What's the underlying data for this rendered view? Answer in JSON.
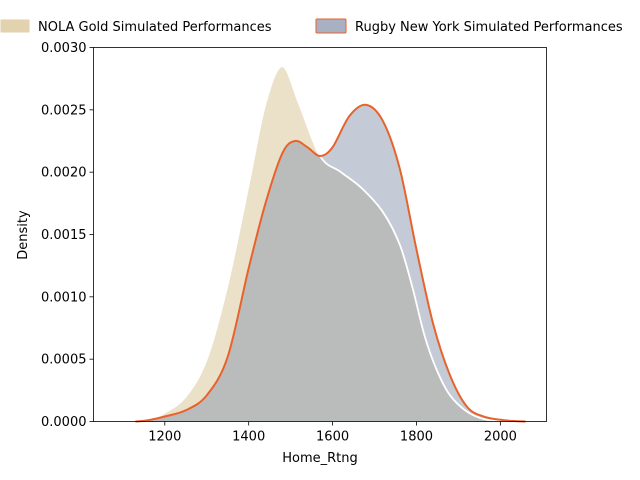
{
  "chart_data": {
    "type": "area",
    "title": "",
    "xlabel": "Home_Rtng",
    "ylabel": "Density",
    "xlim": [
      1030,
      2110
    ],
    "ylim": [
      0,
      0.003
    ],
    "x_ticks": [
      1200,
      1400,
      1600,
      1800,
      2000
    ],
    "y_ticks": [
      0.0,
      0.0005,
      0.001,
      0.0015,
      0.002,
      0.0025,
      0.003
    ],
    "y_tick_labels": [
      "0.0000",
      "0.0005",
      "0.0010",
      "0.0015",
      "0.0020",
      "0.0025",
      "0.0030"
    ],
    "legend_position": "top, outside plot",
    "grid": false,
    "series": [
      {
        "name": "NOLA Gold Simulated Performances",
        "fill_color": "#d8c391",
        "edge_color": "#ffffff",
        "x": [
          1130,
          1160,
          1200,
          1250,
          1300,
          1350,
          1400,
          1440,
          1480,
          1520,
          1570,
          1620,
          1670,
          1720,
          1760,
          1790,
          1820,
          1850,
          1880,
          1920,
          1960,
          2010,
          2060
        ],
        "y": [
          0.0,
          1e-05,
          7e-05,
          0.0002,
          0.0005,
          0.0011,
          0.0019,
          0.00255,
          0.00285,
          0.00255,
          0.00213,
          0.002,
          0.00187,
          0.00168,
          0.00142,
          0.00108,
          0.00068,
          0.0004,
          0.00021,
          8e-05,
          2e-05,
          0.0,
          0.0
        ]
      },
      {
        "name": "Rugby New York Simulated Performances",
        "fill_color": "#8a97ae",
        "edge_color": "#e8622c",
        "x": [
          1130,
          1160,
          1200,
          1250,
          1300,
          1350,
          1400,
          1440,
          1480,
          1510,
          1540,
          1570,
          1600,
          1640,
          1680,
          1720,
          1760,
          1800,
          1840,
          1880,
          1920,
          1960,
          2010,
          2060
        ],
        "y": [
          0.0,
          1e-05,
          4e-05,
          9e-05,
          0.00021,
          0.00052,
          0.00123,
          0.00175,
          0.00215,
          0.00225,
          0.0022,
          0.00213,
          0.0022,
          0.00245,
          0.00254,
          0.00241,
          0.00203,
          0.00138,
          0.00078,
          0.00037,
          0.00012,
          4e-05,
          1e-05,
          0.0
        ]
      }
    ]
  }
}
